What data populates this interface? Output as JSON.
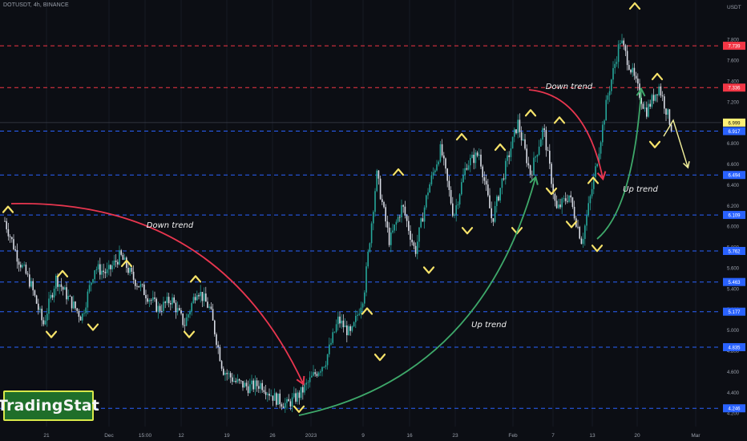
{
  "header": {
    "symbol": "DOTUSDT, 4h, BINANCE"
  },
  "axis": {
    "currency": "USDT"
  },
  "logo": {
    "text": "TradingStat"
  },
  "colors": {
    "background": "#0c0e14",
    "up_candle": "#26a69a",
    "down_candle": "#d9dde6",
    "resistance": "#f23645",
    "support": "#2962ff",
    "marker": "#f7e36a",
    "down_arrow": "#e8364f",
    "up_arrow": "#3ea86a",
    "projection": "#f2ef9a",
    "price_tag": "#fff176"
  },
  "chart_data": {
    "type": "candlestick",
    "symbol": "DOTUSDT",
    "timeframe": "4h",
    "exchange": "BINANCE",
    "x_ticks": [
      "21",
      "Dec",
      "15:00",
      "12",
      "19",
      "26",
      "2023",
      "9",
      "16",
      "23",
      "Feb",
      "7",
      "13",
      "20",
      "Mar"
    ],
    "y_ticks": [
      4.2,
      4.4,
      4.6,
      4.8,
      5.0,
      5.2,
      5.4,
      5.6,
      5.8,
      6.0,
      6.2,
      6.4,
      6.6,
      6.8,
      7.2,
      7.4,
      7.6,
      7.8
    ],
    "ylim": [
      4.07,
      8.18
    ],
    "levels": [
      {
        "price": 7.739,
        "label": "7.739",
        "kind": "resistance"
      },
      {
        "price": 7.336,
        "label": "7.336",
        "kind": "resistance"
      },
      {
        "price": 6.917,
        "label": "6.917",
        "kind": "support"
      },
      {
        "price": 6.494,
        "label": "6.494",
        "kind": "support"
      },
      {
        "price": 6.109,
        "label": "6.109",
        "kind": "support"
      },
      {
        "price": 5.762,
        "label": "5.762",
        "kind": "support"
      },
      {
        "price": 5.463,
        "label": "5.463",
        "kind": "support"
      },
      {
        "price": 5.177,
        "label": "5.177",
        "kind": "support"
      },
      {
        "price": 4.835,
        "label": "4.835",
        "kind": "support"
      },
      {
        "price": 4.246,
        "label": "4.246",
        "kind": "support"
      }
    ],
    "last_price": {
      "price": 6.999,
      "label": "6.999"
    },
    "price_path": [
      [
        "21",
        6.05
      ],
      [
        "",
        5.7
      ],
      [
        "",
        5.45
      ],
      [
        "",
        5.05
      ],
      [
        "",
        5.5
      ],
      [
        "",
        5.3
      ],
      [
        "",
        5.12
      ],
      [
        "",
        5.6
      ],
      [
        "Dec",
        5.55
      ],
      [
        "",
        5.72
      ],
      [
        "",
        5.5
      ],
      [
        "15:00",
        5.35
      ],
      [
        "",
        5.2
      ],
      [
        "",
        5.3
      ],
      [
        "12",
        5.05
      ],
      [
        "",
        5.4
      ],
      [
        "",
        5.2
      ],
      [
        "19",
        4.62
      ],
      [
        "",
        4.5
      ],
      [
        "",
        4.45
      ],
      [
        "26",
        4.48
      ],
      [
        "",
        4.35
      ],
      [
        "",
        4.28
      ],
      [
        "2023",
        4.38
      ],
      [
        "",
        4.55
      ],
      [
        "",
        4.7
      ],
      [
        "9",
        5.1
      ],
      [
        "",
        4.95
      ],
      [
        "",
        5.35
      ],
      [
        "",
        6.5
      ],
      [
        "16",
        5.85
      ],
      [
        "",
        6.2
      ],
      [
        "",
        5.75
      ],
      [
        "23",
        6.35
      ],
      [
        "",
        6.75
      ],
      [
        "",
        6.1
      ],
      [
        "",
        6.6
      ],
      [
        "",
        6.7
      ],
      [
        "Feb",
        6.05
      ],
      [
        "",
        6.55
      ],
      [
        "",
        7.0
      ],
      [
        "7",
        6.5
      ],
      [
        "",
        6.95
      ],
      [
        "",
        6.15
      ],
      [
        "13",
        6.3
      ],
      [
        "",
        5.85
      ],
      [
        "",
        6.5
      ],
      [
        "",
        7.25
      ],
      [
        "20",
        7.8
      ],
      [
        "",
        7.45
      ],
      [
        "",
        7.1
      ],
      [
        "",
        7.35
      ],
      [
        "",
        6.95
      ]
    ],
    "swing_highs": [
      {
        "label": "21",
        "price": 6.12
      },
      {
        "label": "",
        "price": 5.5
      },
      {
        "label": "",
        "price": 5.6
      },
      {
        "label": "",
        "price": 5.45
      },
      {
        "label": "9",
        "price": 5.14
      },
      {
        "label": "",
        "price": 6.48
      },
      {
        "label": "23",
        "price": 6.82
      },
      {
        "label": "",
        "price": 6.72
      },
      {
        "label": "Feb",
        "price": 7.05
      },
      {
        "label": "7",
        "price": 6.98
      },
      {
        "label": "",
        "price": 6.4
      },
      {
        "label": "20",
        "price": 8.08
      },
      {
        "label": "",
        "price": 7.4
      }
    ],
    "swing_lows": [
      {
        "label": "",
        "price": 5.0
      },
      {
        "label": "",
        "price": 5.07
      },
      {
        "label": "12",
        "price": 5.0
      },
      {
        "label": "2023",
        "price": 4.28
      },
      {
        "label": "",
        "price": 4.78
      },
      {
        "label": "16",
        "price": 5.62
      },
      {
        "label": "",
        "price": 6.0
      },
      {
        "label": "",
        "price": 6.0
      },
      {
        "label": "",
        "price": 6.38
      },
      {
        "label": "",
        "price": 6.06
      },
      {
        "label": "13",
        "price": 5.83
      },
      {
        "label": "",
        "price": 6.83
      }
    ],
    "annotations": [
      {
        "text": "Down trend",
        "kind": "down"
      },
      {
        "text": "Up trend",
        "kind": "up"
      },
      {
        "text": "Down trend",
        "kind": "down"
      },
      {
        "text": "Up trend",
        "kind": "up"
      }
    ]
  }
}
